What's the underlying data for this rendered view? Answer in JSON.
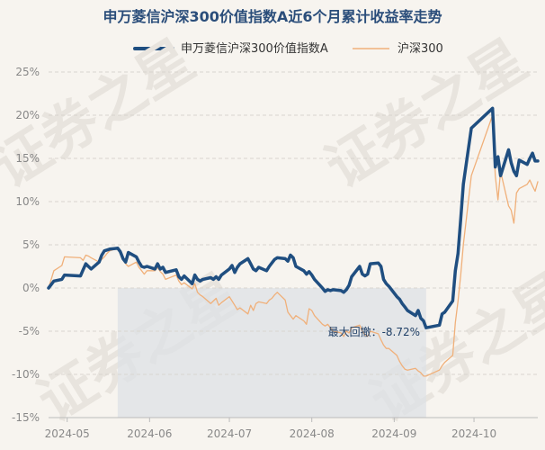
{
  "chart_data": {
    "type": "line",
    "title": "申万菱信沪深300价值指数A近6个月累计收益率走势",
    "watermark": "证券之星",
    "ylim": [
      -15,
      25
    ],
    "yticks": [
      -15,
      -10,
      -5,
      0,
      5,
      10,
      15,
      20,
      25
    ],
    "ytick_labels": [
      "-15%",
      "-10%",
      "-5%",
      "0%",
      "5%",
      "10%",
      "15%",
      "20%",
      "25%"
    ],
    "x_range": [
      "2024-04-24",
      "2024-10-25"
    ],
    "xtick_dates": [
      "2024-05-01",
      "2024-06-01",
      "2024-07-01",
      "2024-08-01",
      "2024-09-01",
      "2024-10-01"
    ],
    "xtick_labels": [
      "2024-05",
      "2024-06",
      "2024-07",
      "2024-08",
      "2024-09",
      "2024-10"
    ],
    "legend_position": "top-center",
    "grid": true,
    "colors": {
      "fund": "#1f4e80",
      "index": "#f0b07a",
      "drawdown": "#dde2e6",
      "title": "#2a4d7a"
    },
    "drawdown": {
      "label": "最大回撤：-8.72%",
      "start": "2024-05-20",
      "end": "2024-09-13"
    },
    "series": [
      {
        "name": "申万菱信沪深300价值指数A",
        "points": [
          [
            "2024-04-24",
            0.0
          ],
          [
            "2024-04-26",
            0.8
          ],
          [
            "2024-04-29",
            1.0
          ],
          [
            "2024-04-30",
            1.5
          ],
          [
            "2024-05-06",
            1.4
          ],
          [
            "2024-05-07",
            2.1
          ],
          [
            "2024-05-08",
            2.8
          ],
          [
            "2024-05-09",
            2.5
          ],
          [
            "2024-05-10",
            2.2
          ],
          [
            "2024-05-13",
            3.0
          ],
          [
            "2024-05-14",
            3.8
          ],
          [
            "2024-05-15",
            4.3
          ],
          [
            "2024-05-16",
            4.4
          ],
          [
            "2024-05-17",
            4.5
          ],
          [
            "2024-05-20",
            4.6
          ],
          [
            "2024-05-21",
            4.2
          ],
          [
            "2024-05-22",
            3.4
          ],
          [
            "2024-05-23",
            3.0
          ],
          [
            "2024-05-24",
            4.1
          ],
          [
            "2024-05-27",
            3.6
          ],
          [
            "2024-05-28",
            3.0
          ],
          [
            "2024-05-29",
            2.5
          ],
          [
            "2024-05-30",
            2.4
          ],
          [
            "2024-05-31",
            2.5
          ],
          [
            "2024-06-03",
            2.2
          ],
          [
            "2024-06-04",
            2.8
          ],
          [
            "2024-06-05",
            2.2
          ],
          [
            "2024-06-06",
            2.4
          ],
          [
            "2024-06-07",
            1.8
          ],
          [
            "2024-06-11",
            2.1
          ],
          [
            "2024-06-12",
            1.3
          ],
          [
            "2024-06-13",
            1.0
          ],
          [
            "2024-06-14",
            1.4
          ],
          [
            "2024-06-17",
            0.5
          ],
          [
            "2024-06-18",
            1.5
          ],
          [
            "2024-06-19",
            1.0
          ],
          [
            "2024-06-20",
            0.8
          ],
          [
            "2024-06-21",
            1.0
          ],
          [
            "2024-06-24",
            1.2
          ],
          [
            "2024-06-25",
            1.0
          ],
          [
            "2024-06-26",
            1.3
          ],
          [
            "2024-06-27",
            1.0
          ],
          [
            "2024-06-28",
            1.5
          ],
          [
            "2024-07-01",
            2.2
          ],
          [
            "2024-07-02",
            2.6
          ],
          [
            "2024-07-03",
            1.8
          ],
          [
            "2024-07-04",
            2.4
          ],
          [
            "2024-07-05",
            2.8
          ],
          [
            "2024-07-08",
            3.4
          ],
          [
            "2024-07-09",
            2.8
          ],
          [
            "2024-07-10",
            2.2
          ],
          [
            "2024-07-11",
            2.0
          ],
          [
            "2024-07-12",
            2.4
          ],
          [
            "2024-07-15",
            2.0
          ],
          [
            "2024-07-16",
            2.5
          ],
          [
            "2024-07-17",
            2.9
          ],
          [
            "2024-07-18",
            3.3
          ],
          [
            "2024-07-19",
            3.5
          ],
          [
            "2024-07-22",
            3.4
          ],
          [
            "2024-07-23",
            3.1
          ],
          [
            "2024-07-24",
            3.8
          ],
          [
            "2024-07-25",
            3.5
          ],
          [
            "2024-07-26",
            2.5
          ],
          [
            "2024-07-29",
            2.0
          ],
          [
            "2024-07-30",
            1.6
          ],
          [
            "2024-07-31",
            1.9
          ],
          [
            "2024-08-01",
            1.5
          ],
          [
            "2024-08-02",
            1.0
          ],
          [
            "2024-08-05",
            0.0
          ],
          [
            "2024-08-06",
            -0.4
          ],
          [
            "2024-08-07",
            -0.2
          ],
          [
            "2024-08-08",
            -0.3
          ],
          [
            "2024-08-09",
            -0.2
          ],
          [
            "2024-08-12",
            -0.3
          ],
          [
            "2024-08-13",
            -0.5
          ],
          [
            "2024-08-14",
            -0.2
          ],
          [
            "2024-08-15",
            0.3
          ],
          [
            "2024-08-16",
            1.3
          ],
          [
            "2024-08-19",
            2.5
          ],
          [
            "2024-08-20",
            1.6
          ],
          [
            "2024-08-21",
            1.4
          ],
          [
            "2024-08-22",
            1.6
          ],
          [
            "2024-08-23",
            2.8
          ],
          [
            "2024-08-26",
            2.9
          ],
          [
            "2024-08-27",
            2.5
          ],
          [
            "2024-08-28",
            1.0
          ],
          [
            "2024-08-29",
            0.5
          ],
          [
            "2024-08-30",
            0.2
          ],
          [
            "2024-09-02",
            -1.0
          ],
          [
            "2024-09-03",
            -1.3
          ],
          [
            "2024-09-04",
            -1.8
          ],
          [
            "2024-09-05",
            -2.2
          ],
          [
            "2024-09-06",
            -2.6
          ],
          [
            "2024-09-09",
            -3.2
          ],
          [
            "2024-09-10",
            -2.6
          ],
          [
            "2024-09-11",
            -3.5
          ],
          [
            "2024-09-12",
            -3.8
          ],
          [
            "2024-09-13",
            -4.6
          ],
          [
            "2024-09-18",
            -4.3
          ],
          [
            "2024-09-19",
            -3.0
          ],
          [
            "2024-09-20",
            -2.8
          ],
          [
            "2024-09-23",
            -1.5
          ],
          [
            "2024-09-24",
            2.0
          ],
          [
            "2024-09-25",
            4.0
          ],
          [
            "2024-09-26",
            8.0
          ],
          [
            "2024-09-27",
            12.0
          ],
          [
            "2024-09-30",
            18.5
          ],
          [
            "2024-10-08",
            20.8
          ],
          [
            "2024-10-09",
            14.0
          ],
          [
            "2024-10-10",
            15.2
          ],
          [
            "2024-10-11",
            13.0
          ],
          [
            "2024-10-14",
            16.0
          ],
          [
            "2024-10-15",
            14.5
          ],
          [
            "2024-10-16",
            13.5
          ],
          [
            "2024-10-17",
            13.0
          ],
          [
            "2024-10-18",
            14.8
          ],
          [
            "2024-10-21",
            14.3
          ],
          [
            "2024-10-22",
            15.0
          ],
          [
            "2024-10-23",
            15.6
          ],
          [
            "2024-10-24",
            14.7
          ],
          [
            "2024-10-25",
            14.7
          ]
        ]
      },
      {
        "name": "沪深300",
        "points": [
          [
            "2024-04-24",
            0.0
          ],
          [
            "2024-04-26",
            2.0
          ],
          [
            "2024-04-29",
            2.6
          ],
          [
            "2024-04-30",
            3.6
          ],
          [
            "2024-05-06",
            3.5
          ],
          [
            "2024-05-07",
            3.2
          ],
          [
            "2024-05-08",
            3.8
          ],
          [
            "2024-05-09",
            3.7
          ],
          [
            "2024-05-10",
            3.5
          ],
          [
            "2024-05-13",
            3.0
          ],
          [
            "2024-05-14",
            3.3
          ],
          [
            "2024-05-15",
            3.6
          ],
          [
            "2024-05-16",
            4.0
          ],
          [
            "2024-05-17",
            4.3
          ],
          [
            "2024-05-20",
            4.6
          ],
          [
            "2024-05-21",
            4.0
          ],
          [
            "2024-05-22",
            3.3
          ],
          [
            "2024-05-23",
            2.8
          ],
          [
            "2024-05-24",
            2.5
          ],
          [
            "2024-05-27",
            3.0
          ],
          [
            "2024-05-28",
            2.4
          ],
          [
            "2024-05-29",
            2.0
          ],
          [
            "2024-05-30",
            1.6
          ],
          [
            "2024-05-31",
            2.0
          ],
          [
            "2024-06-03",
            2.0
          ],
          [
            "2024-06-04",
            2.4
          ],
          [
            "2024-06-05",
            1.9
          ],
          [
            "2024-06-06",
            1.6
          ],
          [
            "2024-06-07",
            1.0
          ],
          [
            "2024-06-11",
            1.5
          ],
          [
            "2024-06-12",
            0.8
          ],
          [
            "2024-06-13",
            0.4
          ],
          [
            "2024-06-14",
            0.6
          ],
          [
            "2024-06-17",
            -0.1
          ],
          [
            "2024-06-18",
            0.5
          ],
          [
            "2024-06-19",
            -0.5
          ],
          [
            "2024-06-20",
            -0.8
          ],
          [
            "2024-06-21",
            -1.0
          ],
          [
            "2024-06-24",
            -1.8
          ],
          [
            "2024-06-25",
            -1.5
          ],
          [
            "2024-06-26",
            -1.2
          ],
          [
            "2024-06-27",
            -2.0
          ],
          [
            "2024-06-28",
            -1.7
          ],
          [
            "2024-07-01",
            -1.0
          ],
          [
            "2024-07-02",
            -1.5
          ],
          [
            "2024-07-03",
            -2.0
          ],
          [
            "2024-07-04",
            -2.5
          ],
          [
            "2024-07-05",
            -2.3
          ],
          [
            "2024-07-08",
            -3.0
          ],
          [
            "2024-07-09",
            -2.0
          ],
          [
            "2024-07-10",
            -2.6
          ],
          [
            "2024-07-11",
            -1.8
          ],
          [
            "2024-07-12",
            -1.6
          ],
          [
            "2024-07-15",
            -1.8
          ],
          [
            "2024-07-16",
            -1.4
          ],
          [
            "2024-07-17",
            -1.2
          ],
          [
            "2024-07-18",
            -0.8
          ],
          [
            "2024-07-19",
            -0.5
          ],
          [
            "2024-07-22",
            -1.4
          ],
          [
            "2024-07-23",
            -2.8
          ],
          [
            "2024-07-24",
            -3.2
          ],
          [
            "2024-07-25",
            -3.6
          ],
          [
            "2024-07-26",
            -3.2
          ],
          [
            "2024-07-29",
            -3.8
          ],
          [
            "2024-07-30",
            -4.2
          ],
          [
            "2024-07-31",
            -2.4
          ],
          [
            "2024-08-01",
            -2.6
          ],
          [
            "2024-08-02",
            -3.2
          ],
          [
            "2024-08-05",
            -4.2
          ],
          [
            "2024-08-06",
            -4.4
          ],
          [
            "2024-08-07",
            -4.2
          ],
          [
            "2024-08-08",
            -4.6
          ],
          [
            "2024-08-09",
            -5.0
          ],
          [
            "2024-08-12",
            -5.2
          ],
          [
            "2024-08-13",
            -5.6
          ],
          [
            "2024-08-14",
            -5.0
          ],
          [
            "2024-08-15",
            -5.2
          ],
          [
            "2024-08-16",
            -4.6
          ],
          [
            "2024-08-19",
            -4.3
          ],
          [
            "2024-08-20",
            -5.0
          ],
          [
            "2024-08-21",
            -5.4
          ],
          [
            "2024-08-22",
            -5.6
          ],
          [
            "2024-08-23",
            -5.0
          ],
          [
            "2024-08-26",
            -5.3
          ],
          [
            "2024-08-27",
            -6.0
          ],
          [
            "2024-08-28",
            -6.6
          ],
          [
            "2024-08-29",
            -7.0
          ],
          [
            "2024-08-30",
            -7.0
          ],
          [
            "2024-09-02",
            -7.8
          ],
          [
            "2024-09-03",
            -8.5
          ],
          [
            "2024-09-04",
            -9.0
          ],
          [
            "2024-09-05",
            -9.4
          ],
          [
            "2024-09-06",
            -9.5
          ],
          [
            "2024-09-09",
            -9.3
          ],
          [
            "2024-09-10",
            -9.6
          ],
          [
            "2024-09-11",
            -9.8
          ],
          [
            "2024-09-12",
            -10.2
          ],
          [
            "2024-09-13",
            -10.2
          ],
          [
            "2024-09-18",
            -9.5
          ],
          [
            "2024-09-19",
            -9.0
          ],
          [
            "2024-09-20",
            -8.6
          ],
          [
            "2024-09-23",
            -7.8
          ],
          [
            "2024-09-24",
            -4.0
          ],
          [
            "2024-09-25",
            -1.5
          ],
          [
            "2024-09-26",
            1.5
          ],
          [
            "2024-09-27",
            5.0
          ],
          [
            "2024-09-30",
            13.0
          ],
          [
            "2024-10-08",
            20.0
          ],
          [
            "2024-10-09",
            13.0
          ],
          [
            "2024-10-10",
            10.2
          ],
          [
            "2024-10-11",
            13.5
          ],
          [
            "2024-10-14",
            9.5
          ],
          [
            "2024-10-15",
            9.0
          ],
          [
            "2024-10-16",
            7.5
          ],
          [
            "2024-10-17",
            11.0
          ],
          [
            "2024-10-18",
            11.5
          ],
          [
            "2024-10-21",
            12.0
          ],
          [
            "2024-10-22",
            12.5
          ],
          [
            "2024-10-23",
            11.8
          ],
          [
            "2024-10-24",
            11.2
          ],
          [
            "2024-10-25",
            12.3
          ]
        ]
      }
    ]
  }
}
